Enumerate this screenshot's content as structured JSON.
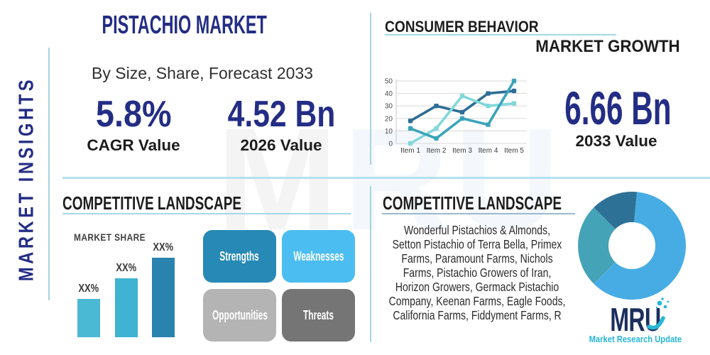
{
  "title": "PISTACHIO MARKET",
  "subtitle": "By Size, Share, Forecast 2033",
  "sidebar_label": "MARKET INSIGHTS",
  "stats": {
    "cagr": {
      "value": "5.8%",
      "label": "CAGR Value"
    },
    "base_year": {
      "value": "4.52 Bn",
      "label": "2026 Value"
    },
    "forecast_year": {
      "value": "6.66 Bn",
      "label": "2033 Value"
    }
  },
  "sections": {
    "consumer_behavior": {
      "title": "CONSUMER BEHAVIOR",
      "subtitle": "MARKET GROWTH"
    },
    "competitive_left": {
      "title": "COMPETITIVE LANDSCAPE",
      "chart_label": "MARKET SHARE"
    },
    "competitive_right": {
      "title": "COMPETITIVE LANDSCAPE",
      "companies_lines": [
        "Wonderful Pistachios & Almonds,",
        "Setton Pistachio of Terra Bella, Primex",
        "Farms, Paramount Farms, Nichols",
        "Farms, Pistachio Growers of Iran,",
        "Horizon Growers, Germack Pistachio",
        "Company, Keenan Farms, Eagle Foods,",
        "California Farms, Fiddyment Farms, R"
      ]
    }
  },
  "swot": [
    {
      "label": "Strengths",
      "color": "#2789b5"
    },
    {
      "label": "Weaknesses",
      "color": "#4cbdf0"
    },
    {
      "label": "Opportunities",
      "color": "#b4b4b4"
    },
    {
      "label": "Threats",
      "color": "#757575"
    }
  ],
  "logo": {
    "text": "MRU",
    "tagline": "Market Research Update",
    "navy": "#1c2f5e",
    "teal": "#27b6d6"
  },
  "watermark": {
    "text": "MRU"
  },
  "chart_data": [
    {
      "type": "line",
      "title": "Market Growth (Consumer Behavior)",
      "categories": [
        "Item 1",
        "Item 2",
        "Item 3",
        "Item 4",
        "Item 5"
      ],
      "series": [
        {
          "name": "series-dark-blue",
          "color": "#2e6e96",
          "values": [
            18,
            30,
            25,
            40,
            42
          ]
        },
        {
          "name": "series-light-cyan",
          "color": "#82d8da",
          "values": [
            0,
            12,
            38,
            30,
            32
          ]
        },
        {
          "name": "series-teal",
          "color": "#3ba4ba",
          "values": [
            12,
            4,
            20,
            15,
            50
          ]
        }
      ],
      "ylim": [
        0,
        50
      ],
      "yticks": [
        0,
        10,
        20,
        30,
        40,
        50
      ],
      "grid": true,
      "legend": false
    },
    {
      "type": "bar",
      "title": "Market Share",
      "categories": [
        "XX%",
        "XX%",
        "XX%"
      ],
      "values": [
        54,
        83,
        112
      ],
      "value_labels_shown": [
        "XX%",
        "XX%",
        "XX%"
      ],
      "colors": [
        "#49b9d4",
        "#3fb3d1",
        "#2a82ae"
      ],
      "axis_hidden": true
    },
    {
      "type": "pie",
      "title": "Competitive Landscape Donut",
      "donut": true,
      "start_angle_deg": -45,
      "inner_ratio": 0.435,
      "segments": [
        {
          "name": "dark-slate",
          "value": 14,
          "color": "#2e7196"
        },
        {
          "name": "bright-blue",
          "value": 61,
          "color": "#47ace4"
        },
        {
          "name": "teal",
          "value": 25,
          "color": "#45a3b8"
        }
      ]
    }
  ]
}
